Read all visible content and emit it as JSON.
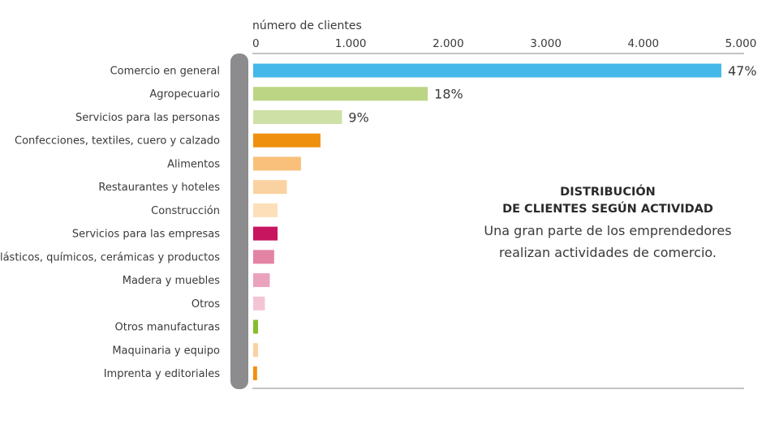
{
  "chart_data": {
    "type": "bar",
    "orientation": "horizontal",
    "xlabel": "número de clientes",
    "xlim": [
      0,
      5000
    ],
    "ticks": [
      {
        "value": 0,
        "label": "0"
      },
      {
        "value": 1000,
        "label": "1.000"
      },
      {
        "value": 2000,
        "label": "2.000"
      },
      {
        "value": 3000,
        "label": "3.000"
      },
      {
        "value": 4000,
        "label": "4.000"
      },
      {
        "value": 5000,
        "label": "5.000"
      }
    ],
    "categories": [
      "Comercio en general",
      "Agropecuario",
      "Servicios para las personas",
      "Confecciones, textiles, cuero y calzado",
      "Alimentos",
      "Restaurantes y hoteles",
      "Construcción",
      "Servicios para las empresas",
      "Plásticos, químicos, cerámicas y productos",
      "Madera y muebles",
      "Otros",
      "Otros manufacturas",
      "Maquinaria y equipo",
      "Imprenta y editoriales"
    ],
    "values": [
      4800,
      1790,
      910,
      690,
      490,
      345,
      250,
      250,
      215,
      170,
      120,
      50,
      50,
      40
    ],
    "colors": [
      "#44b8e8",
      "#bcd585",
      "#cfe0a6",
      "#f0900f",
      "#f8c07b",
      "#fad1a0",
      "#fddfba",
      "#c8155f",
      "#e484a5",
      "#eaa2bd",
      "#f3c4d6",
      "#86bd2f",
      "#fad1a0",
      "#f0900f"
    ],
    "data_labels": [
      "47%",
      "18%",
      "9%",
      "",
      "",
      "",
      "",
      "",
      "",
      "",
      "",
      "",
      "",
      ""
    ],
    "grid": false
  },
  "annotation": {
    "title_line1": "DISTRIBUCIÓN",
    "title_line2": "DE CLIENTES SEGÚN ACTIVIDAD",
    "sub_line1": "Una gran parte de los emprendedores",
    "sub_line2": "realizan actividades de comercio."
  },
  "style": {
    "axis_color": "#8a8a8a",
    "bracket_color": "#8c8c8e"
  }
}
